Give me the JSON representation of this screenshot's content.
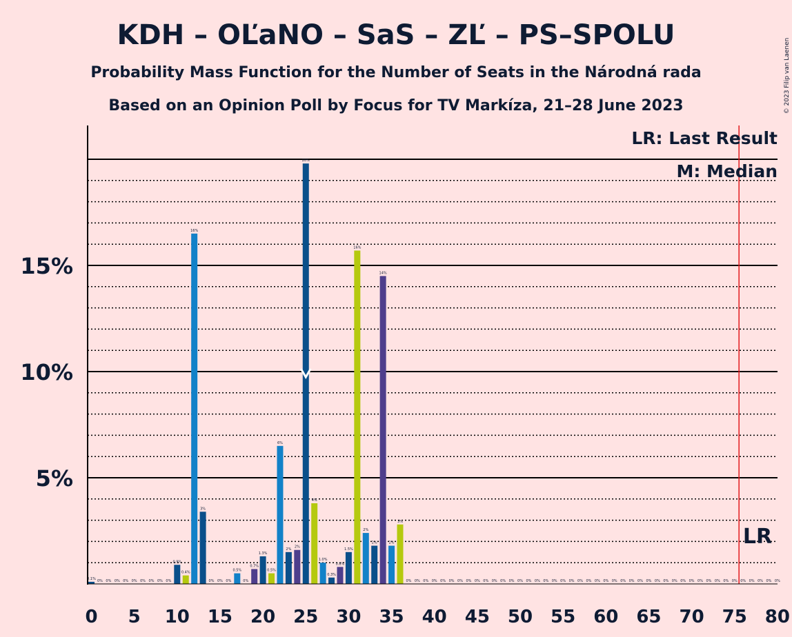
{
  "title": "KDH – OĽaNO – SaS – ZĽ – PS–SPOLU",
  "subtitle1": "Probability Mass Function for the Number of Seats in the Národná rada",
  "subtitle2": "Based on an Opinion Poll by Focus for TV Markíza, 21–28 June 2023",
  "credit": "© 2023 Filip van Laenen",
  "legend": {
    "lr": "LR: Last Result",
    "median": "M: Median"
  },
  "lr_marker": "LR",
  "colors": {
    "background": "#ffe3e3",
    "text": "#0e1b33",
    "last_result_line": "#e3191c",
    "party_colors": [
      "#0a4f8a",
      "#1281c8",
      "#b5c90f",
      "#4e3e8c"
    ]
  },
  "chart_data": {
    "type": "bar",
    "xlabel": "",
    "ylabel": "",
    "xlim": [
      0,
      80
    ],
    "ylim": [
      0,
      21.5
    ],
    "x_ticks": [
      "0",
      "5",
      "10",
      "15",
      "20",
      "25",
      "30",
      "35",
      "40",
      "45",
      "50",
      "55",
      "60",
      "65",
      "70",
      "75",
      "80"
    ],
    "y_ticks": [
      {
        "value": 5,
        "label": "5%"
      },
      {
        "value": 10,
        "label": "10%"
      },
      {
        "value": 15,
        "label": "15%"
      }
    ],
    "grid": "dotted every 1%, solid every 5%",
    "median": 25,
    "last_result": 76,
    "seats": [
      0,
      1,
      2,
      3,
      4,
      5,
      6,
      7,
      8,
      9,
      10,
      11,
      12,
      13,
      14,
      15,
      16,
      17,
      18,
      19,
      20,
      21,
      22,
      23,
      24,
      25,
      26,
      27,
      28,
      29,
      30,
      31,
      32,
      33,
      34,
      35,
      36,
      37,
      38,
      39,
      40,
      41,
      42,
      43,
      44,
      45,
      46,
      47,
      48,
      49,
      50,
      51,
      52,
      53,
      54,
      55,
      56,
      57,
      58,
      59,
      60,
      61,
      62,
      63,
      64,
      65,
      66,
      67,
      68,
      69,
      70,
      71,
      72,
      73,
      74,
      75,
      76,
      77,
      78,
      79,
      80
    ],
    "values": [
      0.1,
      0,
      0,
      0,
      0,
      0,
      0,
      0,
      0,
      0,
      0.9,
      0.4,
      16.5,
      3.4,
      0,
      0,
      0,
      0.5,
      0,
      0.7,
      1.3,
      0.5,
      6.5,
      1.5,
      1.6,
      19.8,
      3.8,
      1.0,
      0.3,
      0.8,
      1.5,
      15.7,
      2.4,
      1.8,
      14.5,
      1.8,
      2.8,
      0,
      0,
      0,
      0,
      0,
      0,
      0,
      0,
      0,
      0,
      0,
      0,
      0,
      0,
      0,
      0,
      0,
      0,
      0,
      0,
      0,
      0,
      0,
      0,
      0,
      0,
      0,
      0,
      0,
      0,
      0,
      0,
      0,
      0,
      0,
      0,
      0,
      0,
      0,
      0,
      0,
      0,
      0,
      0
    ],
    "labels": [
      "0.1%",
      "0%",
      "0%",
      "0%",
      "0%",
      "0%",
      "0%",
      "0%",
      "0%",
      "0%",
      "0.9%",
      "0.4%",
      "16%",
      "3%",
      "0%",
      "0%",
      "0%",
      "0.5%",
      "0%",
      "0.7%",
      "1.3%",
      "0.5%",
      "6%",
      "2%",
      "2%",
      "20%",
      "4%",
      "1.0%",
      "0.3%",
      "0.8%",
      "1.5%",
      "16%",
      "2%",
      "2%",
      "14%",
      "2%",
      "3%",
      "0%",
      "0%",
      "0%",
      "0%",
      "0%",
      "0%",
      "0%",
      "0%",
      "0%",
      "0%",
      "0%",
      "0%",
      "0%",
      "0%",
      "0%",
      "0%",
      "0%",
      "0%",
      "0%",
      "0%",
      "0%",
      "0%",
      "0%",
      "0%",
      "0%",
      "0%",
      "0%",
      "0%",
      "0%",
      "0%",
      "0%",
      "0%",
      "0%",
      "0%",
      "0%",
      "0%",
      "0%",
      "0%",
      "0%",
      "0%",
      "0%",
      "0%",
      "0%",
      "0%"
    ],
    "bar_colors": [
      0,
      0,
      0,
      0,
      0,
      0,
      0,
      0,
      0,
      0,
      0,
      2,
      1,
      0,
      0,
      0,
      0,
      1,
      0,
      3,
      0,
      2,
      1,
      0,
      3,
      0,
      2,
      1,
      0,
      3,
      0,
      2,
      1,
      0,
      3,
      1,
      2,
      0,
      0,
      0,
      0,
      0,
      0,
      0,
      0,
      0,
      0,
      0,
      0,
      0,
      0,
      0,
      0,
      0,
      0,
      0,
      0,
      0,
      0,
      0,
      0,
      0,
      0,
      0,
      0,
      0,
      0,
      0,
      0,
      0,
      0,
      0,
      0,
      0,
      0,
      0,
      0,
      0,
      0,
      0,
      0
    ]
  }
}
